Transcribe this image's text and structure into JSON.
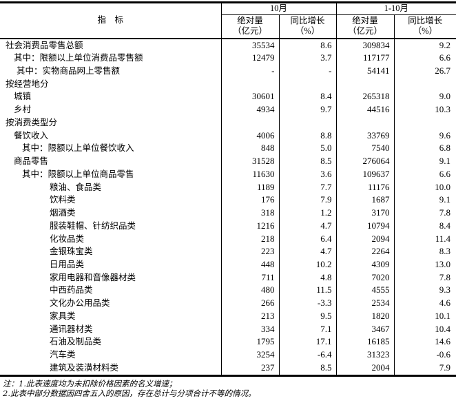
{
  "table": {
    "header": {
      "indicator": "指　标",
      "period_month": "10月",
      "period_cumulative": "1-10月",
      "abs_line1": "绝对量",
      "abs_line2": "（亿元）",
      "yoy_line1": "同比增长",
      "yoy_line2": "（%）"
    },
    "rows": [
      {
        "label": "社会消费品零售总额",
        "oct_abs": "35534",
        "oct_yoy": "8.6",
        "ytd_abs": "309834",
        "ytd_yoy": "9.2"
      },
      {
        "label": "其中：限额以上单位消费品零售额",
        "oct_abs": "12479",
        "oct_yoy": "3.7",
        "ytd_abs": "117177",
        "ytd_yoy": "6.6"
      },
      {
        "label": "其中：实物商品网上零售额",
        "oct_abs": "-",
        "oct_yoy": "-",
        "ytd_abs": "54141",
        "ytd_yoy": "26.7"
      },
      {
        "label": "按经营地分",
        "oct_abs": "",
        "oct_yoy": "",
        "ytd_abs": "",
        "ytd_yoy": ""
      },
      {
        "label": "城镇",
        "oct_abs": "30601",
        "oct_yoy": "8.4",
        "ytd_abs": "265318",
        "ytd_yoy": "9.0"
      },
      {
        "label": "乡村",
        "oct_abs": "4934",
        "oct_yoy": "9.7",
        "ytd_abs": "44516",
        "ytd_yoy": "10.3"
      },
      {
        "label": "按消费类型分",
        "oct_abs": "",
        "oct_yoy": "",
        "ytd_abs": "",
        "ytd_yoy": ""
      },
      {
        "label": "餐饮收入",
        "oct_abs": "4006",
        "oct_yoy": "8.8",
        "ytd_abs": "33769",
        "ytd_yoy": "9.6"
      },
      {
        "label": "其中：限额以上单位餐饮收入",
        "oct_abs": "848",
        "oct_yoy": "5.0",
        "ytd_abs": "7540",
        "ytd_yoy": "6.8"
      },
      {
        "label": "商品零售",
        "oct_abs": "31528",
        "oct_yoy": "8.5",
        "ytd_abs": "276064",
        "ytd_yoy": "9.1"
      },
      {
        "label": "其中：限额以上单位商品零售",
        "oct_abs": "11630",
        "oct_yoy": "3.6",
        "ytd_abs": "109637",
        "ytd_yoy": "6.6"
      },
      {
        "label": "粮油、食品类",
        "oct_abs": "1189",
        "oct_yoy": "7.7",
        "ytd_abs": "11176",
        "ytd_yoy": "10.0"
      },
      {
        "label": "饮料类",
        "oct_abs": "176",
        "oct_yoy": "7.9",
        "ytd_abs": "1687",
        "ytd_yoy": "9.1"
      },
      {
        "label": "烟酒类",
        "oct_abs": "318",
        "oct_yoy": "1.2",
        "ytd_abs": "3170",
        "ytd_yoy": "7.8"
      },
      {
        "label": "服装鞋帽、针纺织品类",
        "oct_abs": "1216",
        "oct_yoy": "4.7",
        "ytd_abs": "10794",
        "ytd_yoy": "8.4"
      },
      {
        "label": "化妆品类",
        "oct_abs": "218",
        "oct_yoy": "6.4",
        "ytd_abs": "2094",
        "ytd_yoy": "11.4"
      },
      {
        "label": "金银珠宝类",
        "oct_abs": "223",
        "oct_yoy": "4.7",
        "ytd_abs": "2264",
        "ytd_yoy": "8.3"
      },
      {
        "label": "日用品类",
        "oct_abs": "448",
        "oct_yoy": "10.2",
        "ytd_abs": "4309",
        "ytd_yoy": "13.0"
      },
      {
        "label": "家用电器和音像器材类",
        "oct_abs": "711",
        "oct_yoy": "4.8",
        "ytd_abs": "7020",
        "ytd_yoy": "7.8"
      },
      {
        "label": "中西药品类",
        "oct_abs": "480",
        "oct_yoy": "11.5",
        "ytd_abs": "4555",
        "ytd_yoy": "9.3"
      },
      {
        "label": "文化办公用品类",
        "oct_abs": "266",
        "oct_yoy": "-3.3",
        "ytd_abs": "2534",
        "ytd_yoy": "4.6"
      },
      {
        "label": "家具类",
        "oct_abs": "213",
        "oct_yoy": "9.5",
        "ytd_abs": "1820",
        "ytd_yoy": "10.1"
      },
      {
        "label": "通讯器材类",
        "oct_abs": "334",
        "oct_yoy": "7.1",
        "ytd_abs": "3467",
        "ytd_yoy": "10.4"
      },
      {
        "label": "石油及制品类",
        "oct_abs": "1795",
        "oct_yoy": "17.1",
        "ytd_abs": "16185",
        "ytd_yoy": "14.6"
      },
      {
        "label": "汽车类",
        "oct_abs": "3254",
        "oct_yoy": "-6.4",
        "ytd_abs": "31323",
        "ytd_yoy": "-0.6"
      },
      {
        "label": "建筑及装潢材料类",
        "oct_abs": "237",
        "oct_yoy": "8.5",
        "ytd_abs": "2004",
        "ytd_yoy": "7.9"
      }
    ]
  },
  "notes": {
    "line1": "注：1.此表速度均为未扣除价格因素的名义增速；",
    "line2": "2.此表中部分数据因四舍五入的原因，存在总计与分项合计不等的情况。"
  },
  "colors": {
    "border": "#000000",
    "text": "#000000",
    "background": "#ffffff"
  }
}
